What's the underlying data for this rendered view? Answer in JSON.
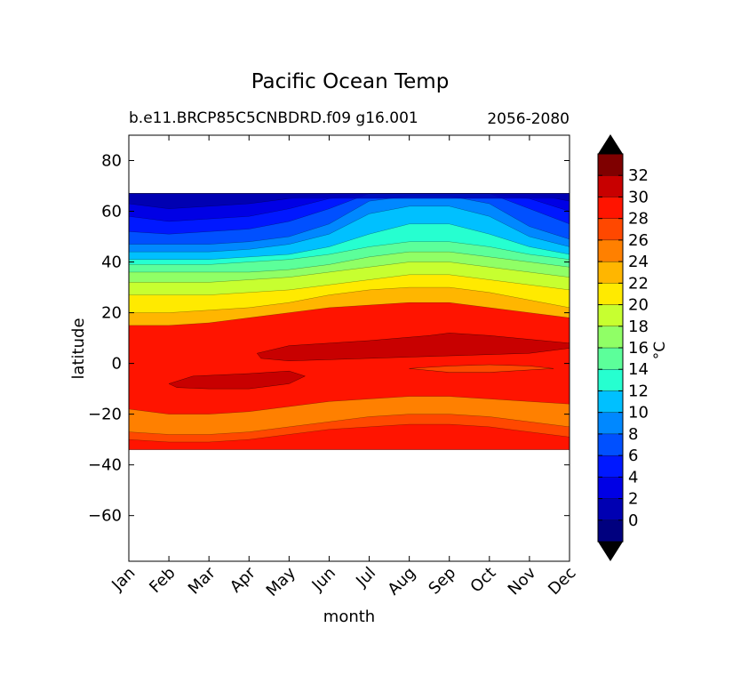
{
  "chart_data": {
    "type": "contour",
    "title": "Pacific Ocean Temp",
    "subtitle_left": "b.e11.BRCP85C5CNBDRD.f09 g16.001",
    "subtitle_right": "2056-2080",
    "xlabel": "month",
    "ylabel": "latitude",
    "x_ticks": [
      "Jan",
      "Feb",
      "Mar",
      "Apr",
      "May",
      "Jun",
      "Jul",
      "Aug",
      "Sep",
      "Oct",
      "Nov",
      "Dec"
    ],
    "ylim": [
      -78,
      90
    ],
    "y_ticks": [
      80,
      60,
      40,
      20,
      0,
      -20,
      -40,
      -60
    ],
    "y_tick_labels": [
      "80",
      "60",
      "40",
      "20",
      "0",
      "−20",
      "−40",
      "−60"
    ],
    "data_lat_range": [
      -34,
      67
    ],
    "colorbar": {
      "label": "°C",
      "extend": "both",
      "levels": [
        -2,
        0,
        2,
        4,
        6,
        8,
        10,
        12,
        14,
        16,
        18,
        20,
        22,
        24,
        26,
        28,
        30,
        32,
        34
      ],
      "tick_labels": [
        "0",
        "2",
        "4",
        "6",
        "8",
        "10",
        "12",
        "14",
        "16",
        "18",
        "20",
        "22",
        "24",
        "26",
        "28",
        "30",
        "32"
      ],
      "colors": [
        "#00007f",
        "#0000b2",
        "#0000e5",
        "#0018ff",
        "#0050ff",
        "#0088ff",
        "#00c0ff",
        "#26ffd0",
        "#5cff9a",
        "#90ff66",
        "#c7ff30",
        "#ffea00",
        "#ffb600",
        "#ff8000",
        "#ff4800",
        "#ff1400",
        "#c80000",
        "#7f0000"
      ],
      "under_color": "#000000",
      "over_color": "#000000"
    },
    "series": [
      {
        "value": 30,
        "x": [
          0,
          1,
          2,
          3,
          4,
          5,
          6,
          7,
          8,
          9,
          10,
          11
        ],
        "lat": [
          -30,
          -31,
          -31,
          -30,
          -28,
          -26,
          -25,
          -24,
          -24,
          -25,
          -27,
          -29
        ]
      },
      {
        "value": 28,
        "x": [
          0,
          1,
          2,
          3,
          4,
          5,
          6,
          7,
          8,
          9,
          10,
          11
        ],
        "lat": [
          -27,
          -28,
          -28,
          -27,
          -25,
          -23,
          -21,
          -20,
          -20,
          -21,
          -23,
          -25
        ]
      },
      {
        "value": 26,
        "x": [
          0,
          1,
          2,
          3,
          4,
          5,
          6,
          7,
          8,
          9,
          10,
          11
        ],
        "lat": [
          -18,
          -20,
          -20,
          -19,
          -17,
          -15,
          -14,
          -13,
          -13,
          -14,
          -15,
          -16
        ]
      },
      {
        "value": 24,
        "x": [
          0,
          1,
          2,
          3,
          4,
          5,
          6,
          7,
          8,
          9,
          10,
          11
        ],
        "lat": [
          15,
          15,
          16,
          18,
          20,
          22,
          23,
          24,
          24,
          22,
          20,
          18
        ]
      },
      {
        "value": 22,
        "x": [
          0,
          1,
          2,
          3,
          4,
          5,
          6,
          7,
          8,
          9,
          10,
          11
        ],
        "lat": [
          20,
          20,
          21,
          22,
          24,
          27,
          29,
          30,
          30,
          28,
          25,
          22
        ]
      },
      {
        "value": 20,
        "x": [
          0,
          1,
          2,
          3,
          4,
          5,
          6,
          7,
          8,
          9,
          10,
          11
        ],
        "lat": [
          27,
          27,
          27,
          28,
          29,
          31,
          33,
          35,
          35,
          33,
          31,
          29
        ]
      },
      {
        "value": 18,
        "x": [
          0,
          1,
          2,
          3,
          4,
          5,
          6,
          7,
          8,
          9,
          10,
          11
        ],
        "lat": [
          32,
          32,
          32,
          33,
          34,
          36,
          38,
          40,
          40,
          38,
          36,
          34
        ]
      },
      {
        "value": 16,
        "x": [
          0,
          1,
          2,
          3,
          4,
          5,
          6,
          7,
          8,
          9,
          10,
          11
        ],
        "lat": [
          36,
          36,
          36,
          36,
          37,
          39,
          42,
          44,
          44,
          42,
          40,
          38
        ]
      },
      {
        "value": 14,
        "x": [
          0,
          1,
          2,
          3,
          4,
          5,
          6,
          7,
          8,
          9,
          10,
          11
        ],
        "lat": [
          39,
          39,
          39,
          40,
          41,
          43,
          46,
          48,
          48,
          46,
          43,
          41
        ]
      },
      {
        "value": 12,
        "x": [
          0,
          1,
          2,
          3,
          4,
          5,
          6,
          7,
          8,
          9,
          10,
          11
        ],
        "lat": [
          41,
          41,
          41,
          42,
          43,
          46,
          51,
          55,
          55,
          51,
          46,
          43
        ]
      },
      {
        "value": 10,
        "x": [
          0,
          1,
          2,
          3,
          4,
          5,
          6,
          7,
          8,
          9,
          10,
          11
        ],
        "lat": [
          44,
          44,
          44,
          45,
          47,
          51,
          59,
          62,
          62,
          58,
          50,
          46
        ]
      },
      {
        "value": 8,
        "x": [
          0,
          1,
          2,
          3,
          4,
          5,
          6,
          7,
          8,
          9,
          10,
          11
        ],
        "lat": [
          47,
          47,
          47,
          48,
          50,
          55,
          64,
          66,
          66,
          63,
          54,
          49
        ]
      },
      {
        "value": 6,
        "x": [
          0,
          1,
          2,
          3,
          4,
          5,
          6,
          7,
          8,
          9,
          10,
          11
        ],
        "lat": [
          52,
          51,
          52,
          53,
          56,
          61,
          67,
          67,
          67,
          67,
          61,
          55
        ]
      },
      {
        "value": 4,
        "x": [
          0,
          1,
          2,
          3,
          4,
          5,
          6,
          7,
          8,
          9,
          10,
          11
        ],
        "lat": [
          58,
          56,
          57,
          58,
          61,
          65,
          67,
          67,
          67,
          67,
          65,
          60
        ]
      },
      {
        "value": 2,
        "x": [
          0,
          1,
          2,
          3,
          4,
          5,
          6,
          7,
          8,
          9,
          10,
          11
        ],
        "lat": [
          63,
          61,
          62,
          63,
          65,
          67,
          67,
          67,
          67,
          67,
          67,
          64
        ]
      }
    ]
  }
}
